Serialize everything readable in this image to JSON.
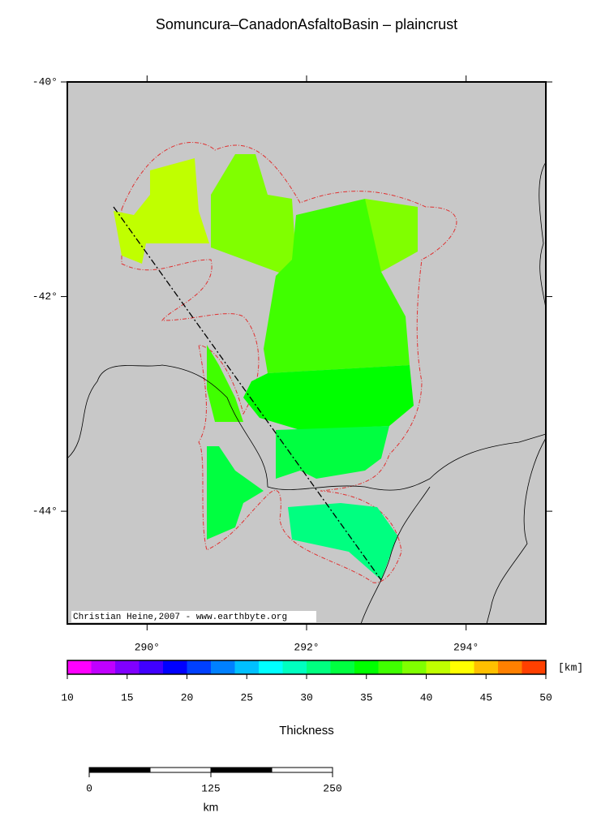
{
  "title": "Somuncura–CanadonAsfaltoBasin – plaincrust",
  "map": {
    "lonlim": [
      289,
      295
    ],
    "latlim": [
      -45.05,
      -40
    ],
    "lat_ticks": [
      {
        "value": -40,
        "label": "-40°"
      },
      {
        "value": -42,
        "label": "-42°"
      },
      {
        "value": -44,
        "label": "-44°"
      }
    ],
    "lon_ticks": [
      {
        "value": 290,
        "label": "290°"
      },
      {
        "value": 292,
        "label": "292°"
      },
      {
        "value": 294,
        "label": "294°"
      }
    ],
    "credit": "Christian Heine,2007 - www.earthbyte.org"
  },
  "colorbar": {
    "range": [
      10,
      50
    ],
    "ticks": [
      10,
      15,
      20,
      25,
      30,
      35,
      40,
      45,
      50
    ],
    "unit": "[km]",
    "label": "Thickness",
    "colors": [
      "#ff00ff",
      "#c000ff",
      "#8000ff",
      "#4000ff",
      "#0000ff",
      "#0040ff",
      "#0080ff",
      "#00c0ff",
      "#00ffff",
      "#00ffc0",
      "#00ff80",
      "#00ff40",
      "#00ff00",
      "#40ff00",
      "#80ff00",
      "#c0ff00",
      "#ffff00",
      "#ffc000",
      "#ff8000",
      "#ff4000"
    ]
  },
  "scalebar": {
    "range": [
      0,
      250
    ],
    "ticks": [
      0,
      125,
      250
    ],
    "unit": "km"
  }
}
